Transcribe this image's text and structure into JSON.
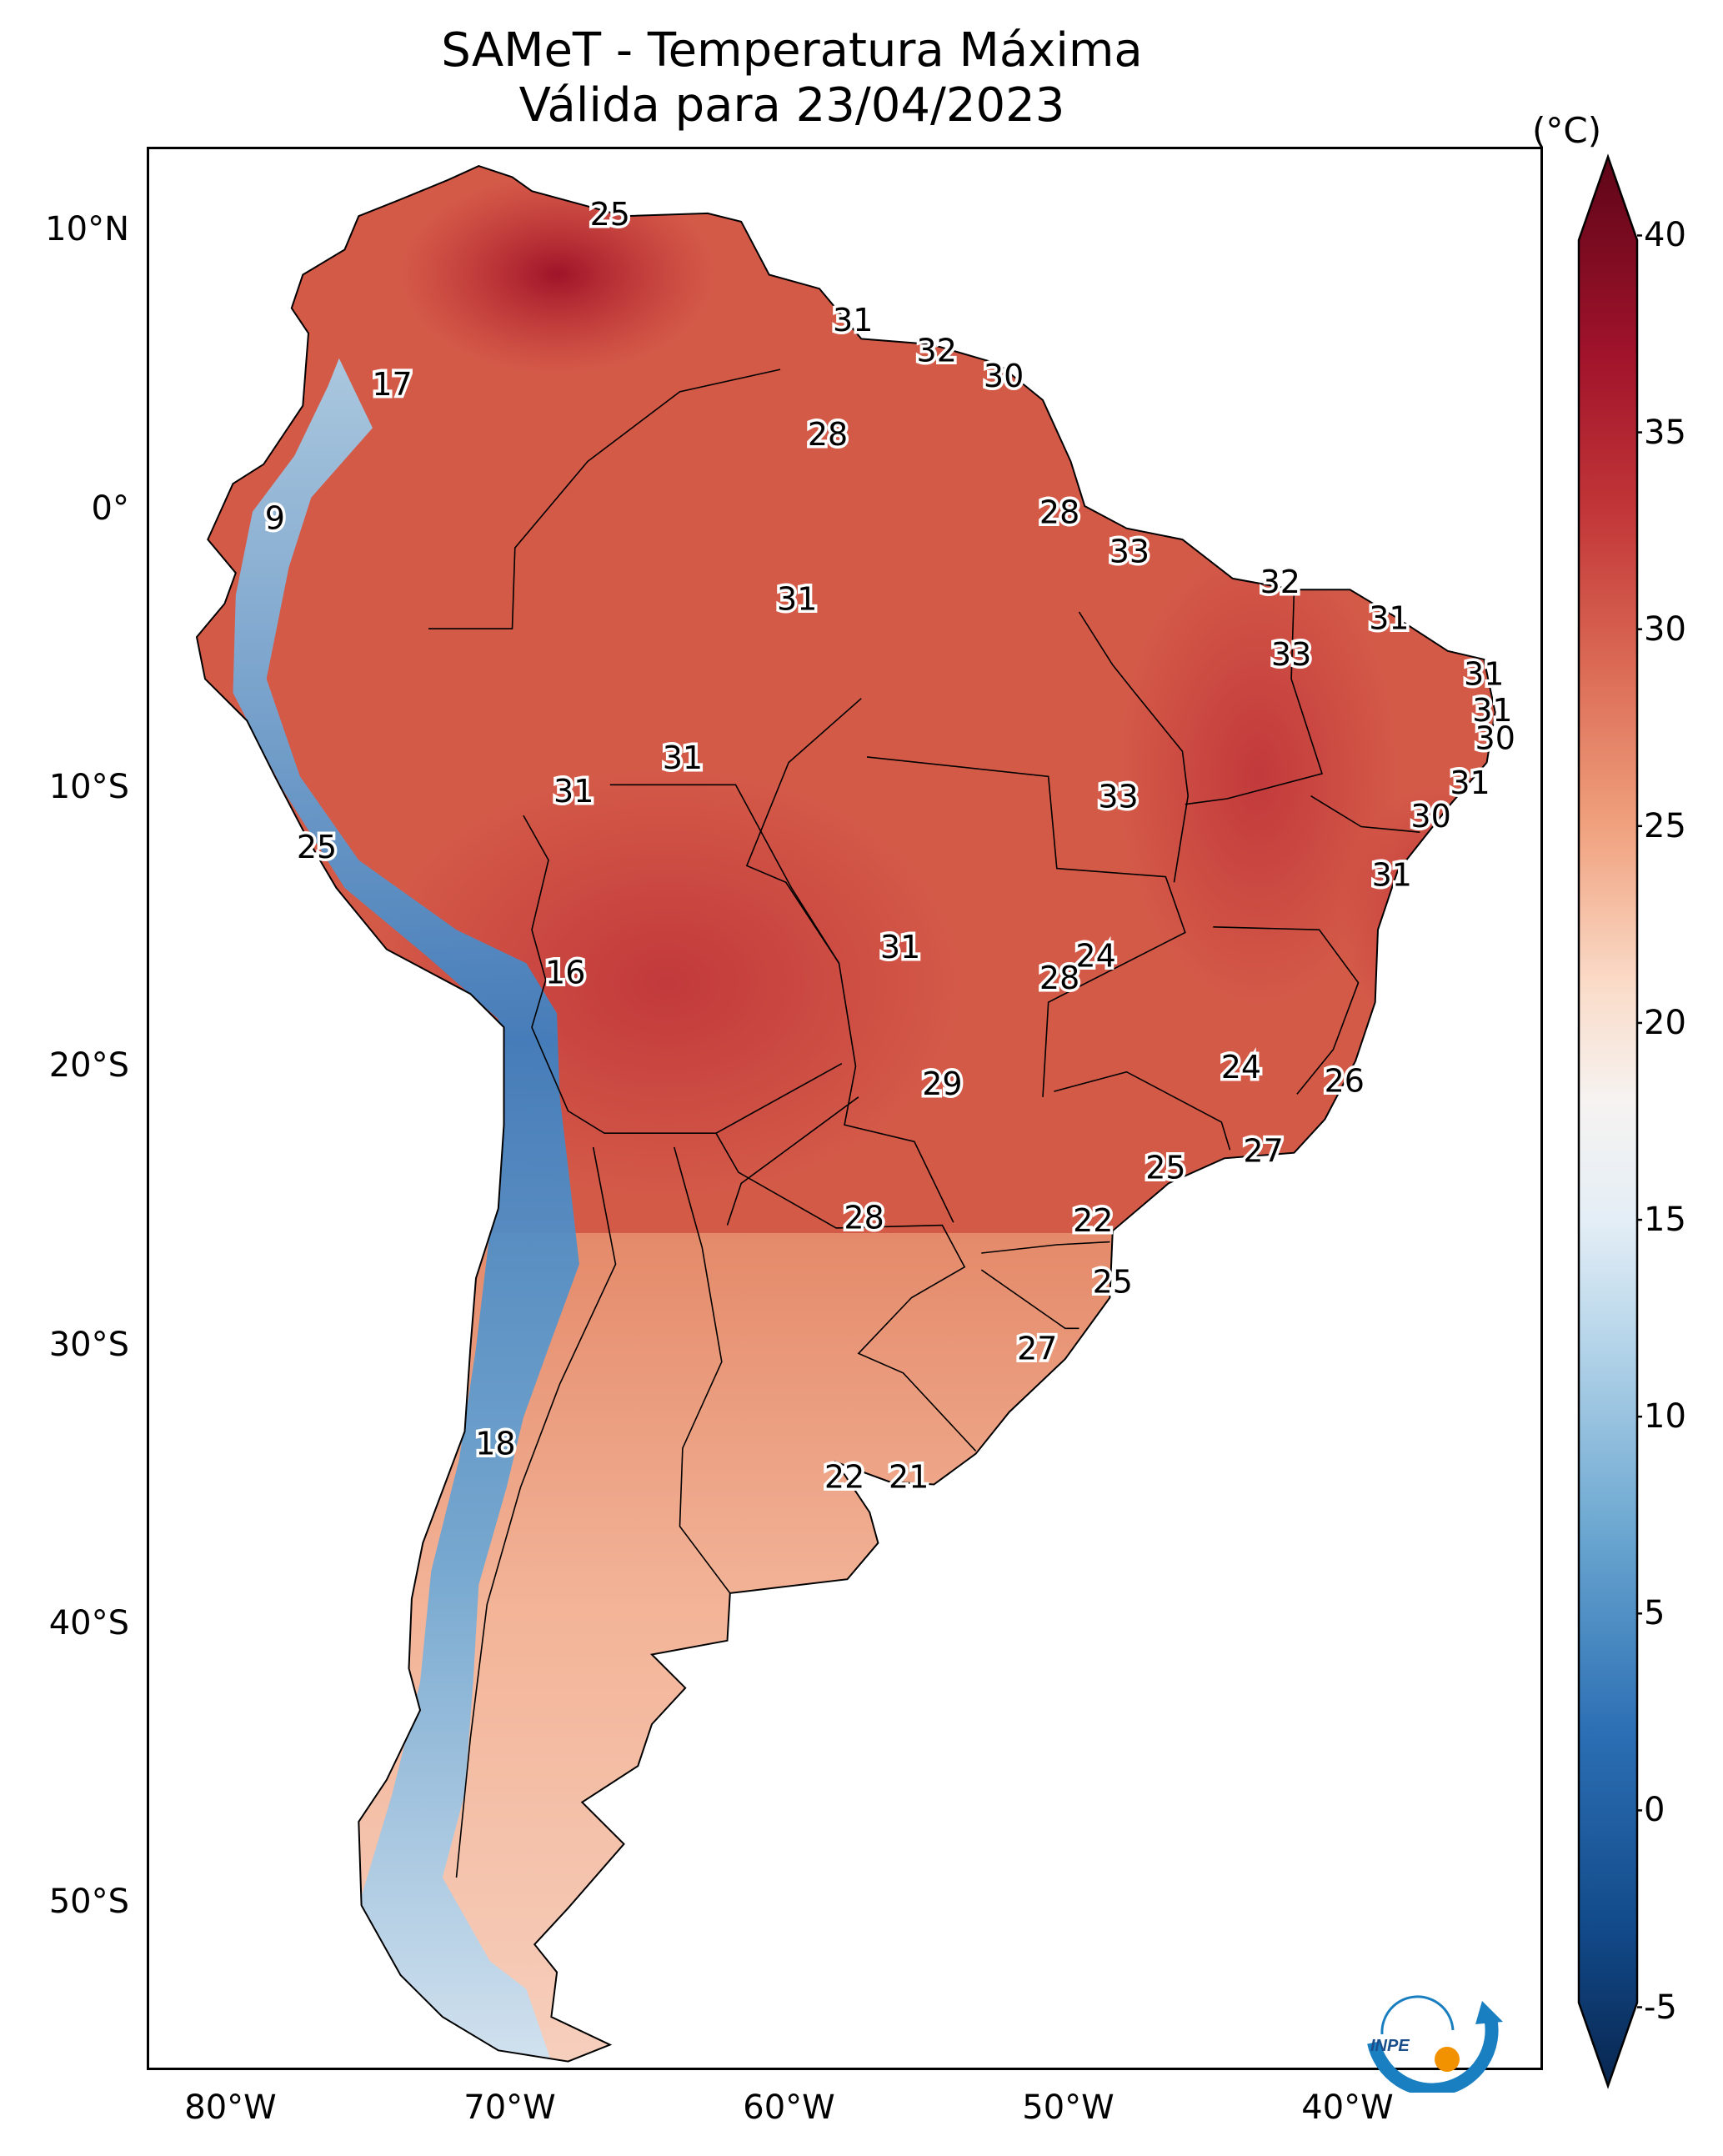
{
  "title": {
    "line1": "SAMeT - Temperatura Máxima",
    "line2": "Válida para 23/04/2023"
  },
  "map": {
    "lon_range": [
      -83,
      -33
    ],
    "lat_range": [
      -56,
      13
    ],
    "lat_ticks": [
      "10°N",
      "0°",
      "10°S",
      "20°S",
      "30°S",
      "40°S",
      "50°S"
    ],
    "lon_ticks": [
      "80°W",
      "70°W",
      "60°W",
      "50°W",
      "40°W"
    ],
    "station_labels": [
      {
        "lon": -66.5,
        "lat": 10.7,
        "text": "25"
      },
      {
        "lon": -74.3,
        "lat": 4.6,
        "text": "17"
      },
      {
        "lon": -78.5,
        "lat": -0.2,
        "text": "9"
      },
      {
        "lon": -57.8,
        "lat": 6.9,
        "text": "31"
      },
      {
        "lon": -54.8,
        "lat": 5.8,
        "text": "32"
      },
      {
        "lon": -52.4,
        "lat": 4.9,
        "text": "30"
      },
      {
        "lon": -58.7,
        "lat": 2.8,
        "text": "28"
      },
      {
        "lon": -50.4,
        "lat": 0.0,
        "text": "28"
      },
      {
        "lon": -59.8,
        "lat": -3.1,
        "text": "31"
      },
      {
        "lon": -47.9,
        "lat": -1.4,
        "text": "33"
      },
      {
        "lon": -42.5,
        "lat": -2.5,
        "text": "32"
      },
      {
        "lon": -38.6,
        "lat": -3.8,
        "text": "31"
      },
      {
        "lon": -42.1,
        "lat": -5.1,
        "text": "33"
      },
      {
        "lon": -35.2,
        "lat": -5.8,
        "text": "31"
      },
      {
        "lon": -34.9,
        "lat": -7.1,
        "text": "31"
      },
      {
        "lon": -34.8,
        "lat": -8.1,
        "text": "30"
      },
      {
        "lon": -63.9,
        "lat": -8.8,
        "text": "31"
      },
      {
        "lon": -67.8,
        "lat": -10.0,
        "text": "31"
      },
      {
        "lon": -48.3,
        "lat": -10.2,
        "text": "33"
      },
      {
        "lon": -35.7,
        "lat": -9.7,
        "text": "31"
      },
      {
        "lon": -37.1,
        "lat": -10.9,
        "text": "30"
      },
      {
        "lon": -38.5,
        "lat": -13.0,
        "text": "31"
      },
      {
        "lon": -77.0,
        "lat": -12.0,
        "text": "25"
      },
      {
        "lon": -68.1,
        "lat": -16.5,
        "text": "16"
      },
      {
        "lon": -56.1,
        "lat": -15.6,
        "text": "31"
      },
      {
        "lon": -49.1,
        "lat": -15.9,
        "text": "24"
      },
      {
        "lon": -50.4,
        "lat": -16.7,
        "text": "28"
      },
      {
        "lon": -43.9,
        "lat": -19.9,
        "text": "24"
      },
      {
        "lon": -40.2,
        "lat": -20.4,
        "text": "26"
      },
      {
        "lon": -54.6,
        "lat": -20.5,
        "text": "29"
      },
      {
        "lon": -43.1,
        "lat": -22.9,
        "text": "27"
      },
      {
        "lon": -46.6,
        "lat": -23.5,
        "text": "25"
      },
      {
        "lon": -57.4,
        "lat": -25.3,
        "text": "28"
      },
      {
        "lon": -49.2,
        "lat": -25.4,
        "text": "22"
      },
      {
        "lon": -48.5,
        "lat": -27.6,
        "text": "25"
      },
      {
        "lon": -51.2,
        "lat": -30.0,
        "text": "27"
      },
      {
        "lon": -70.6,
        "lat": -33.4,
        "text": "18"
      },
      {
        "lon": -58.1,
        "lat": -34.6,
        "text": "22"
      },
      {
        "lon": -55.8,
        "lat": -34.6,
        "text": "21"
      }
    ]
  },
  "colorbar": {
    "unit": "(°C)",
    "min": -7,
    "max": 42,
    "ticks": [
      "40",
      "35",
      "30",
      "25",
      "20",
      "15",
      "10",
      "5",
      "0",
      "-5"
    ],
    "stops": [
      {
        "v": -7,
        "c": "#08264f"
      },
      {
        "v": -3,
        "c": "#124a8a"
      },
      {
        "v": 2,
        "c": "#2c6fb4"
      },
      {
        "v": 7,
        "c": "#6aa6d0"
      },
      {
        "v": 12,
        "c": "#b7d6ea"
      },
      {
        "v": 15,
        "c": "#e4eef6"
      },
      {
        "v": 18,
        "c": "#f6f3f1"
      },
      {
        "v": 21,
        "c": "#fadbc8"
      },
      {
        "v": 25,
        "c": "#f0a17e"
      },
      {
        "v": 29,
        "c": "#db6b55"
      },
      {
        "v": 33,
        "c": "#c23638"
      },
      {
        "v": 37,
        "c": "#a0132b"
      },
      {
        "v": 42,
        "c": "#5e0518"
      }
    ]
  },
  "logo": {
    "text": "INPE",
    "color": "#1a7fc1",
    "accent": "#f39200"
  }
}
